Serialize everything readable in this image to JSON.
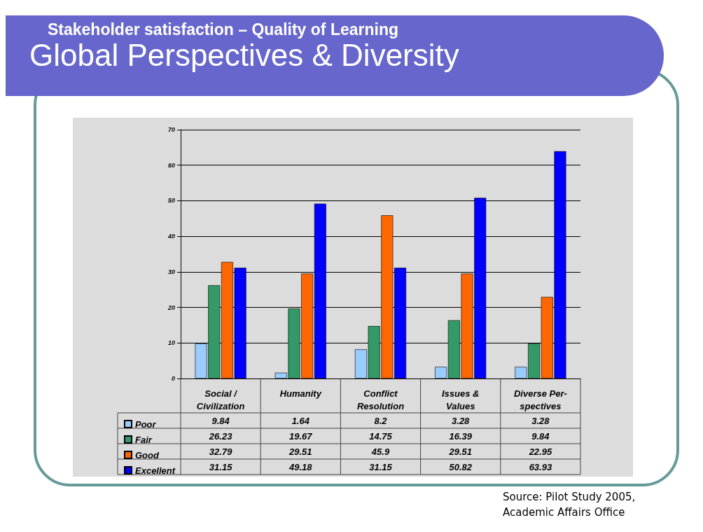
{
  "chart_data": {
    "type": "bar",
    "subtitle": "Stakeholder satisfaction – Quality of Learning",
    "title": "Global Perspectives & Diversity",
    "categories": [
      "Social /\nCivilization",
      "Humanity",
      "Conflict\nResolution",
      "Issues &\nValues",
      "Diverse Per-\nspectives"
    ],
    "series": [
      {
        "name": "Poor",
        "color": "#99ccff",
        "values": [
          9.84,
          1.64,
          8.2,
          3.28,
          3.28
        ]
      },
      {
        "name": "Fair",
        "color": "#339966",
        "values": [
          26.23,
          19.67,
          14.75,
          16.39,
          9.84
        ]
      },
      {
        "name": "Good",
        "color": "#ff6600",
        "values": [
          32.79,
          29.51,
          45.9,
          29.51,
          22.95
        ]
      },
      {
        "name": "Excellent",
        "color": "#0000ff",
        "values": [
          31.15,
          49.18,
          31.15,
          50.82,
          63.93
        ]
      }
    ],
    "ylim": [
      0,
      70
    ],
    "yticks": [
      0,
      10,
      20,
      30,
      40,
      50,
      60,
      70
    ],
    "grid": "y",
    "legend": "bottom left",
    "data_labels": true,
    "annotations": [
      "Source: Pilot Study 2005,\nAcademic Affairs Office"
    ]
  }
}
